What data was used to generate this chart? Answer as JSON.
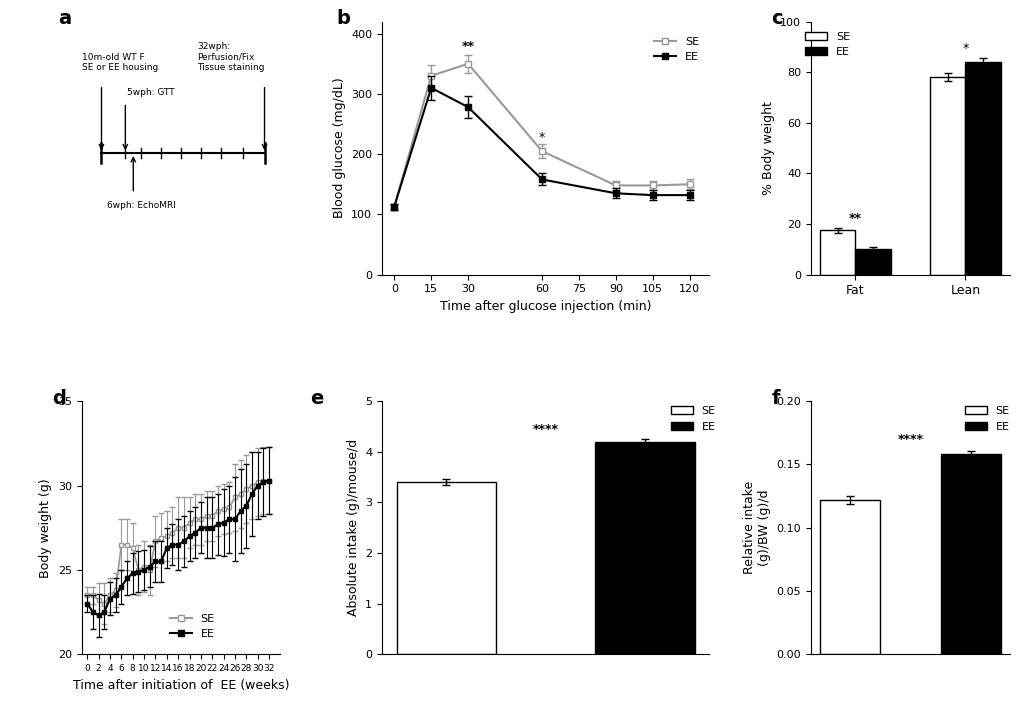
{
  "panel_b": {
    "time": [
      0,
      15,
      30,
      60,
      90,
      105,
      120
    ],
    "SE_mean": [
      113,
      330,
      350,
      205,
      148,
      148,
      150
    ],
    "SE_err": [
      5,
      18,
      15,
      12,
      8,
      8,
      8
    ],
    "EE_mean": [
      113,
      310,
      278,
      158,
      135,
      132,
      132
    ],
    "EE_err": [
      5,
      20,
      18,
      10,
      8,
      8,
      8
    ],
    "xlabel": "Time after glucose injection (min)",
    "ylabel": "Blood glucose (mg/dL)",
    "ylim": [
      0,
      420
    ],
    "yticks": [
      0,
      100,
      200,
      300,
      400
    ],
    "xticks": [
      0,
      15,
      30,
      60,
      75,
      90,
      105,
      120
    ],
    "sig_30": "**",
    "sig_60": "*"
  },
  "panel_c": {
    "categories": [
      "Fat",
      "Lean"
    ],
    "SE_mean": [
      17.5,
      78.0
    ],
    "SE_err": [
      1.0,
      1.5
    ],
    "EE_mean": [
      10.0,
      84.0
    ],
    "EE_err": [
      1.0,
      1.5
    ],
    "ylabel": "% Body weight",
    "ylim": [
      0,
      100
    ],
    "yticks": [
      0,
      20,
      40,
      60,
      80,
      100
    ],
    "sig_fat": "**",
    "sig_lean": "*"
  },
  "panel_d": {
    "weeks": [
      0,
      1,
      2,
      3,
      4,
      5,
      6,
      7,
      8,
      9,
      10,
      11,
      12,
      13,
      14,
      15,
      16,
      17,
      18,
      19,
      20,
      21,
      22,
      23,
      24,
      25,
      26,
      27,
      28,
      29,
      30,
      31,
      32
    ],
    "SE_mean": [
      23.5,
      23.5,
      23.2,
      23.0,
      23.5,
      23.8,
      26.5,
      26.5,
      26.3,
      25.0,
      25.2,
      25.0,
      26.7,
      26.9,
      27.0,
      27.2,
      27.5,
      27.5,
      27.8,
      28.0,
      28.0,
      28.2,
      28.2,
      28.5,
      28.6,
      28.7,
      29.3,
      29.5,
      29.8,
      30.0,
      30.2,
      30.3,
      30.3
    ],
    "SE_err": [
      0.5,
      0.5,
      1.0,
      1.2,
      1.0,
      1.0,
      1.5,
      1.5,
      1.5,
      1.5,
      1.5,
      1.5,
      1.5,
      1.5,
      1.5,
      1.5,
      1.8,
      1.8,
      1.5,
      1.5,
      1.5,
      1.5,
      1.5,
      1.5,
      1.5,
      1.5,
      2.0,
      2.0,
      2.0,
      2.0,
      2.0,
      2.0,
      2.0
    ],
    "EE_mean": [
      23.0,
      22.5,
      22.3,
      22.5,
      23.3,
      23.5,
      24.0,
      24.5,
      24.8,
      24.9,
      25.0,
      25.2,
      25.5,
      25.5,
      26.3,
      26.5,
      26.5,
      26.7,
      27.0,
      27.2,
      27.5,
      27.5,
      27.5,
      27.7,
      27.8,
      28.0,
      28.0,
      28.5,
      28.8,
      29.5,
      30.0,
      30.2,
      30.3
    ],
    "EE_err": [
      0.5,
      1.0,
      1.3,
      1.0,
      1.0,
      1.0,
      1.0,
      1.0,
      1.2,
      1.2,
      1.2,
      1.2,
      1.2,
      1.2,
      1.2,
      1.2,
      1.5,
      1.5,
      1.5,
      1.5,
      1.5,
      1.8,
      1.8,
      1.8,
      2.0,
      2.0,
      2.5,
      2.5,
      2.5,
      2.5,
      2.0,
      2.0,
      2.0
    ],
    "xlabel": "Time after initiation of  EE (weeks)",
    "ylabel": "Body weight (g)",
    "ylim": [
      20,
      35
    ],
    "yticks": [
      20,
      25,
      30,
      35
    ],
    "xticks": [
      0,
      2,
      4,
      6,
      8,
      10,
      12,
      14,
      16,
      18,
      20,
      22,
      24,
      26,
      28,
      30,
      32
    ]
  },
  "panel_e": {
    "mean": [
      3.4,
      4.2
    ],
    "err": [
      0.06,
      0.06
    ],
    "ylabel": "Absolute intake (g)/mouse/d",
    "ylim": [
      0,
      5
    ],
    "yticks": [
      0,
      1,
      2,
      3,
      4,
      5
    ],
    "sig": "****"
  },
  "panel_f": {
    "mean": [
      0.122,
      0.158
    ],
    "err": [
      0.003,
      0.003
    ],
    "ylabel": "Relative intake\n(g)/BW (g)/d",
    "ylim": [
      0.0,
      0.2
    ],
    "yticks": [
      0.0,
      0.05,
      0.1,
      0.15,
      0.2
    ],
    "sig": "****"
  },
  "colors": {
    "SE_line": "#999999",
    "EE_line": "#000000",
    "SE_bar": "#ffffff",
    "EE_bar": "#000000",
    "edge": "#000000"
  },
  "fs": 8,
  "lfs": 9
}
